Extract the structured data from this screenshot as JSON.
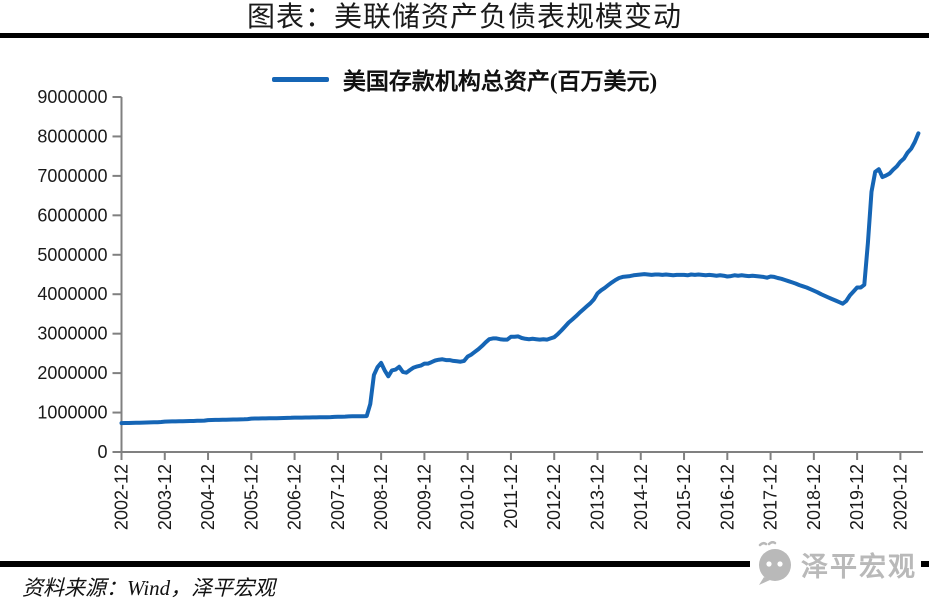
{
  "header": {
    "title": "图表：美联储资产负债表规模变动"
  },
  "footer": {
    "source": "资料来源：Wind，泽平宏观",
    "watermark_text": "泽平宏观"
  },
  "chart_data": {
    "type": "line",
    "title": "图表：美联储资产负债表规模变动",
    "legend": "美国存款机构总资产(百万美元)",
    "legend_position": "top-center",
    "grid": false,
    "line_color": "#1565B5",
    "axis_color": "#808080",
    "label_color": "#1A1A1A",
    "ylim": [
      0,
      9000000
    ],
    "y_ticks": [
      0,
      1000000,
      2000000,
      3000000,
      4000000,
      5000000,
      6000000,
      7000000,
      8000000,
      9000000
    ],
    "x_start": "2002-12",
    "x_interval": "monthly",
    "x_tick_every_months": 12,
    "x_tick_labels": [
      "2002-12",
      "2003-12",
      "2004-12",
      "2005-12",
      "2006-12",
      "2007-12",
      "2008-12",
      "2009-12",
      "2010-12",
      "2011-12",
      "2012-12",
      "2013-12",
      "2014-12",
      "2015-12",
      "2016-12",
      "2017-12",
      "2018-12",
      "2019-12",
      "2020-12"
    ],
    "values": [
      732000,
      734000,
      736000,
      739000,
      741000,
      744000,
      746000,
      748000,
      750000,
      753000,
      756000,
      760000,
      771000,
      773000,
      775000,
      777000,
      779000,
      781000,
      783000,
      785000,
      787000,
      790000,
      793000,
      797000,
      810000,
      811000,
      813000,
      815000,
      817000,
      819000,
      821000,
      823000,
      825000,
      827000,
      830000,
      834000,
      847000,
      849000,
      850000,
      852000,
      853000,
      855000,
      857000,
      858000,
      860000,
      862000,
      864000,
      867000,
      873000,
      872000,
      873000,
      874000,
      875000,
      876000,
      877000,
      879000,
      881000,
      883000,
      886000,
      890000,
      894000,
      896000,
      898000,
      903000,
      905000,
      906000,
      905000,
      908000,
      910000,
      1220000,
      1950000,
      2150000,
      2260000,
      2070000,
      1920000,
      2070000,
      2090000,
      2160000,
      2030000,
      2010000,
      2080000,
      2140000,
      2170000,
      2190000,
      2240000,
      2240000,
      2280000,
      2320000,
      2340000,
      2350000,
      2330000,
      2330000,
      2310000,
      2300000,
      2290000,
      2310000,
      2420000,
      2470000,
      2540000,
      2610000,
      2690000,
      2780000,
      2860000,
      2880000,
      2880000,
      2860000,
      2850000,
      2850000,
      2920000,
      2920000,
      2930000,
      2890000,
      2870000,
      2860000,
      2870000,
      2860000,
      2850000,
      2860000,
      2850000,
      2880000,
      2910000,
      2990000,
      3080000,
      3180000,
      3280000,
      3360000,
      3440000,
      3530000,
      3610000,
      3690000,
      3770000,
      3870000,
      4020000,
      4100000,
      4160000,
      4230000,
      4300000,
      4360000,
      4410000,
      4440000,
      4450000,
      4460000,
      4480000,
      4490000,
      4500000,
      4510000,
      4500000,
      4490000,
      4500000,
      4500000,
      4490000,
      4500000,
      4490000,
      4480000,
      4490000,
      4490000,
      4490000,
      4480000,
      4500000,
      4490000,
      4500000,
      4490000,
      4480000,
      4490000,
      4480000,
      4470000,
      4480000,
      4470000,
      4450000,
      4460000,
      4480000,
      4470000,
      4480000,
      4470000,
      4460000,
      4470000,
      4460000,
      4450000,
      4440000,
      4420000,
      4450000,
      4440000,
      4410000,
      4390000,
      4360000,
      4330000,
      4300000,
      4270000,
      4230000,
      4200000,
      4170000,
      4130000,
      4090000,
      4050000,
      4000000,
      3960000,
      3920000,
      3880000,
      3840000,
      3800000,
      3760000,
      3830000,
      3970000,
      4070000,
      4170000,
      4170000,
      4240000,
      5300000,
      6600000,
      7100000,
      7170000,
      6970000,
      7010000,
      7060000,
      7160000,
      7240000,
      7360000,
      7440000,
      7590000,
      7690000,
      7860000,
      8080000
    ]
  }
}
